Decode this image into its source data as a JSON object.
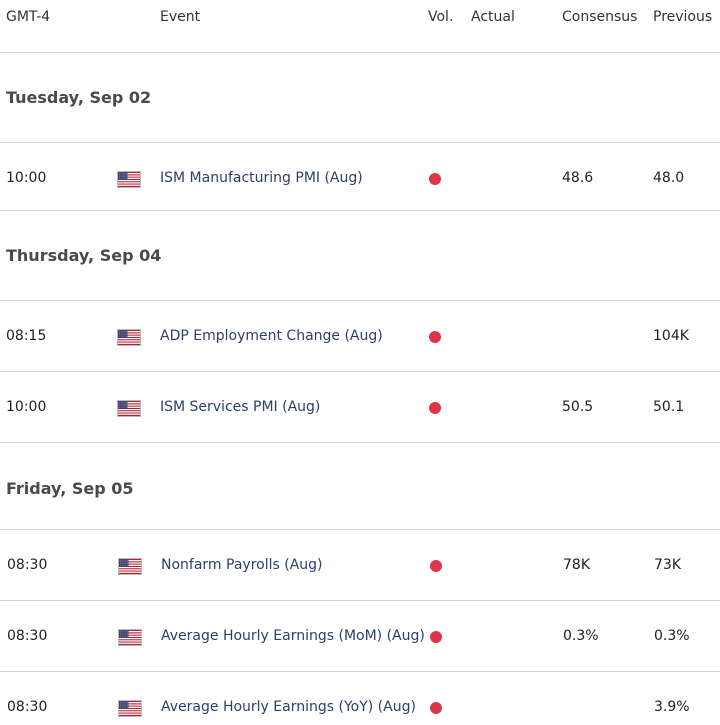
{
  "header": {
    "timezone": "GMT-4",
    "event": "Event",
    "vol": "Vol.",
    "actual": "Actual",
    "consensus": "Consensus",
    "previous": "Previous"
  },
  "days": [
    {
      "label": "Tuesday, Sep 02"
    },
    {
      "label": "Thursday, Sep 04"
    },
    {
      "label": "Friday, Sep 05"
    }
  ],
  "events": [
    {
      "time": "10:00",
      "event": "ISM Manufacturing PMI (Aug)",
      "actual": "",
      "consensus": "48.6",
      "previous": "48.0"
    },
    {
      "time": "08:15",
      "event": "ADP Employment Change (Aug)",
      "actual": "",
      "consensus": "",
      "previous": "104K"
    },
    {
      "time": "10:00",
      "event": "ISM Services PMI (Aug)",
      "actual": "",
      "consensus": "50.5",
      "previous": "50.1"
    },
    {
      "time": "08:30",
      "event": "Nonfarm Payrolls (Aug)",
      "actual": "",
      "consensus": "78K",
      "previous": "73K"
    },
    {
      "time": "08:30",
      "event": "Average Hourly Earnings (MoM) (Aug)",
      "actual": "",
      "consensus": "0.3%",
      "previous": "0.3%"
    },
    {
      "time": "08:30",
      "event": "Average Hourly Earnings (YoY) (Aug)",
      "actual": "",
      "consensus": "",
      "previous": "3.9%"
    }
  ],
  "colors": {
    "volatility_dot": "#dc3545",
    "event_text": "#2c3e6b"
  },
  "icons": {
    "flag": "us-flag-icon",
    "volatility": "high-volatility-dot-icon"
  }
}
